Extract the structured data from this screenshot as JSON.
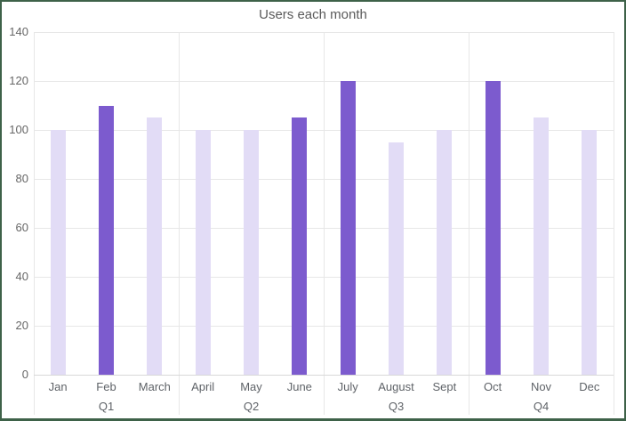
{
  "frame": {
    "border_color": "#3e6249",
    "background": "#ffffff"
  },
  "chart_data": {
    "type": "bar",
    "title": "Users each month",
    "categories": [
      "Jan",
      "Feb",
      "March",
      "April",
      "May",
      "June",
      "July",
      "August",
      "Sept",
      "Oct",
      "Nov",
      "Dec"
    ],
    "values": [
      100,
      110,
      105,
      100,
      100,
      105,
      120,
      95,
      100,
      120,
      105,
      100
    ],
    "highlighted_categories": [
      "Feb",
      "June",
      "July",
      "Oct"
    ],
    "group_labels": [
      "Q1",
      "Q2",
      "Q3",
      "Q4"
    ],
    "groups": [
      [
        "Jan",
        "Feb",
        "March"
      ],
      [
        "April",
        "May",
        "June"
      ],
      [
        "July",
        "August",
        "Sept"
      ],
      [
        "Oct",
        "Nov",
        "Dec"
      ]
    ],
    "xlabel": "",
    "ylabel": "",
    "ylim": [
      0,
      140
    ],
    "yticks": [
      0,
      20,
      40,
      60,
      80,
      100,
      120,
      140
    ],
    "grid": true,
    "legend_position": "none",
    "bar_color_default": "#e2dcf6",
    "bar_color_highlight": "#7c5bce"
  }
}
